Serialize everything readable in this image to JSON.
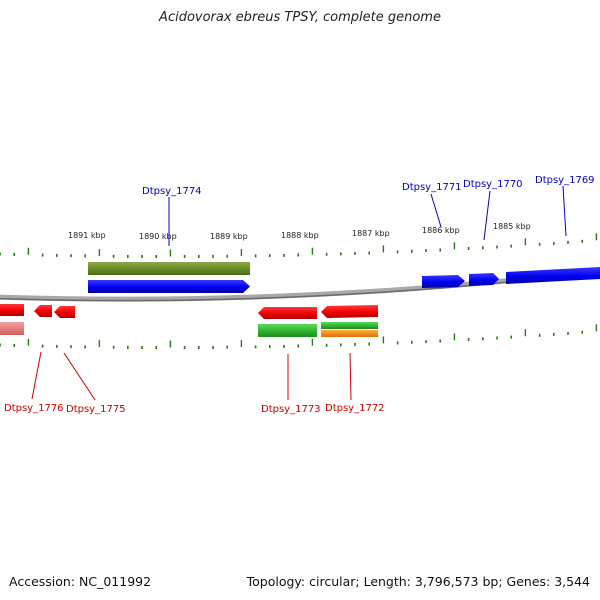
{
  "title": "Acidovorax ebreus TPSY, complete genome",
  "footer": {
    "accession": "Accession: NC_011992",
    "summary": "Topology: circular; Length: 3,796,573 bp; Genes: 3,544"
  },
  "colors": {
    "forward_gene": "#0000ff",
    "reverse_gene": "#ff0000",
    "label_forward": "#0000c8",
    "label_reverse": "#d40000",
    "tick": "#2b7a1a",
    "backbone": "#808080",
    "olive_feature": "#6b8e23",
    "green_feature": "#2fb82f",
    "orange_feature": "#ff8c00"
  },
  "kbp_labels": [
    "1891 kbp",
    "1890 kbp",
    "1889 kbp",
    "1888 kbp",
    "1887 kbp",
    "1886 kbp",
    "1885 kbp"
  ],
  "forward_gene_labels": [
    "Dtpsy_1774",
    "Dtpsy_1771",
    "Dtpsy_1770",
    "Dtpsy_1769"
  ],
  "reverse_gene_labels": [
    "Dtpsy_1776",
    "Dtpsy_1775",
    "Dtpsy_1773",
    "Dtpsy_1772"
  ]
}
